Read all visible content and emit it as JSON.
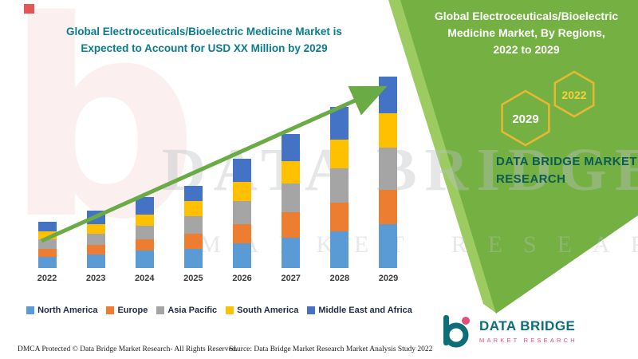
{
  "main_chart": {
    "title_line1": "Global Electroceuticals/Bioelectric Medicine Market is",
    "title_line2": "Expected to Account for USD XX Million by 2029"
  },
  "chart_data": {
    "type": "bar",
    "stacked": true,
    "categories": [
      "2022",
      "2023",
      "2024",
      "2025",
      "2026",
      "2027",
      "2028",
      "2029"
    ],
    "series": [
      {
        "name": "North America",
        "color": "#5B9BD5",
        "values": [
          6,
          7,
          9,
          10,
          13,
          16,
          19,
          23
        ]
      },
      {
        "name": "Europe",
        "color": "#ED7D31",
        "values": [
          4,
          5,
          6,
          8,
          10,
          13,
          15,
          18
        ]
      },
      {
        "name": "Asia Pacific",
        "color": "#A5A5A5",
        "values": [
          5,
          6,
          7,
          9,
          12,
          15,
          18,
          22
        ]
      },
      {
        "name": "South America",
        "color": "#FFC000",
        "values": [
          4,
          5,
          6,
          8,
          10,
          12,
          15,
          18
        ]
      },
      {
        "name": "Middle East and Africa",
        "color": "#4472C4",
        "values": [
          5,
          7,
          9,
          8,
          12,
          14,
          17,
          19
        ]
      }
    ],
    "title": "Global Electroceuticals/Bioelectric Medicine Market is Expected to Account for USD XX Million by 2029",
    "xlabel": "",
    "ylabel": "",
    "ylim": [
      0,
      100
    ],
    "grid": false,
    "legend_position": "bottom",
    "annotations": [
      "green upward trend arrow across bars"
    ]
  },
  "right_panel": {
    "title_line1": "Global Electroceuticals/Bioelectric",
    "title_line2": "Medicine Market, By Regions,",
    "title_line3": "2022 to 2029",
    "hexagons": [
      {
        "label": "2029"
      },
      {
        "label": "2022"
      }
    ],
    "brand_line1": "DATA BRIDGE MARKET",
    "brand_line2": "RESEARCH",
    "background_color": "#75b042",
    "hexagon_border_color": "#e9b832"
  },
  "watermark": {
    "line1": "DATA BRIDGE",
    "line2": "MARKET RESEARCH",
    "letter_b": "b"
  },
  "logo": {
    "name": "DATA BRIDGE",
    "subtitle": "MARKET RESEARCH"
  },
  "footer": {
    "dmca": "DMCA Protected © Data Bridge Market Research- All Rights Reserved.",
    "source": "Source: Data Bridge Market Research Market Analysis Study 2022"
  },
  "colors": {
    "chart_title": "#0b7c8e",
    "arrow": "#6aab45",
    "green_band": "#75b042",
    "brand_teal": "#0d6e78",
    "brand_pink": "#e0507a"
  }
}
